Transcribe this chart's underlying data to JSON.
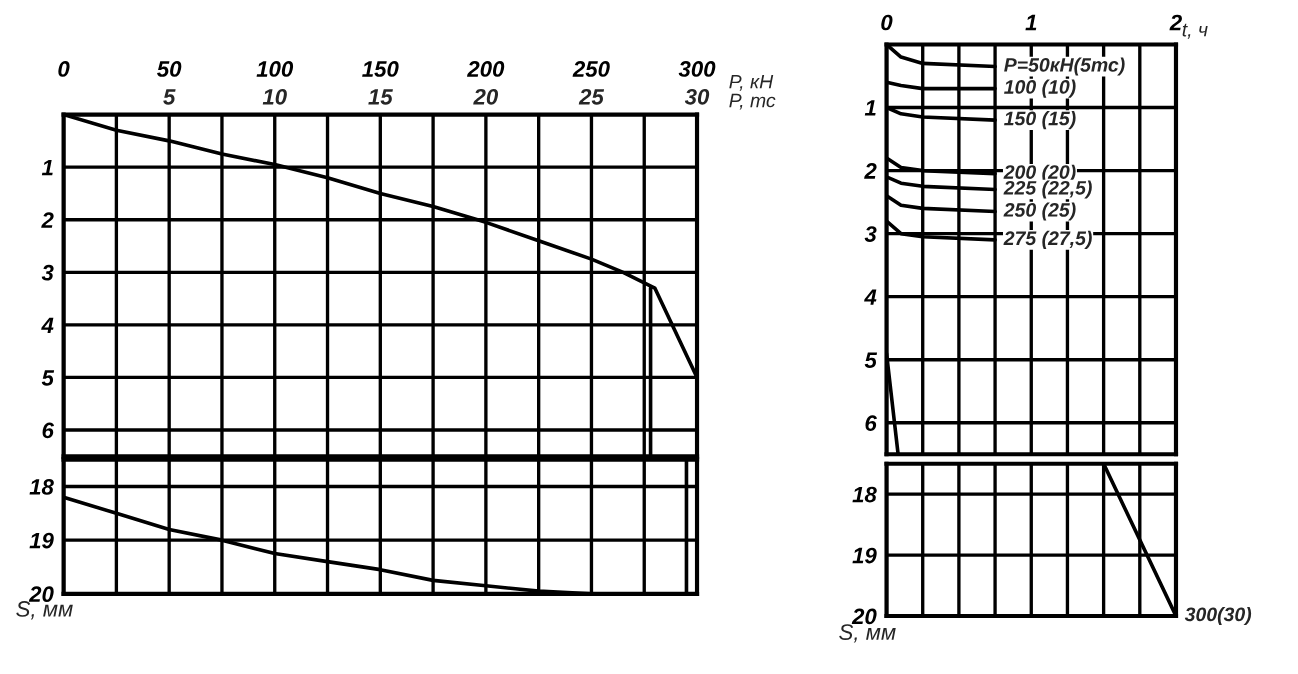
{
  "chart_data": [
    {
      "type": "line",
      "xlabel": "P, кН",
      "x2label": "P, тс",
      "xlim": [
        0,
        300
      ],
      "xticks": [
        0,
        {
          "value": 25,
          "label": null
        },
        50,
        {
          "value": 75,
          "label": null
        },
        100,
        {
          "value": 125,
          "label": null
        },
        150,
        {
          "value": 175,
          "label": null
        },
        200,
        {
          "value": 225,
          "label": null
        },
        250,
        {
          "value": 275,
          "label": null
        },
        300
      ],
      "x2lim": [
        0,
        30
      ],
      "x2ticks": [
        5,
        10,
        15,
        20,
        25,
        30
      ],
      "ylim": [
        6.5,
        0
      ],
      "yticks": [
        1,
        2,
        3,
        4,
        5,
        6
      ],
      "grid": true,
      "series": [
        {
          "color": "#000000",
          "x": [
            0,
            25,
            50,
            75,
            100,
            125,
            150,
            175,
            200,
            225,
            250,
            265,
            280,
            300
          ],
          "values": [
            0,
            0.3,
            0.5,
            0.75,
            0.95,
            1.2,
            1.5,
            1.75,
            2.05,
            2.4,
            2.75,
            3.0,
            3.3,
            5.0
          ]
        },
        {
          "color": "#000000",
          "x": [
            278,
            278
          ],
          "values": [
            3.3,
            6.5
          ]
        }
      ]
    },
    {
      "type": "line",
      "ylabel": "S, мм",
      "xlim": [
        0,
        300
      ],
      "xticks": [
        0,
        25,
        50,
        75,
        100,
        125,
        150,
        175,
        200,
        225,
        250,
        275,
        300
      ],
      "ylim": [
        20,
        17.5
      ],
      "yticks": [
        18,
        19,
        20
      ],
      "grid": true,
      "tick_labels": "y",
      "series": [
        {
          "color": "#000000",
          "x": [
            0,
            25,
            50,
            75,
            100,
            125,
            150,
            175,
            200,
            225,
            250,
            275,
            300
          ],
          "values": [
            18.2,
            18.5,
            18.8,
            19.0,
            19.25,
            19.4,
            19.55,
            19.75,
            19.85,
            19.95,
            20.0,
            20.0,
            20.0
          ]
        },
        {
          "color": "#000000",
          "x": [
            295,
            295
          ],
          "values": [
            17.5,
            20
          ]
        }
      ]
    },
    {
      "type": "line",
      "xlabel": "t, ч",
      "xlim": [
        0,
        2
      ],
      "xticks": [
        0,
        {
          "value": 0.25,
          "label": null
        },
        {
          "value": 0.5,
          "label": null
        },
        {
          "value": 0.75,
          "label": null
        },
        1,
        {
          "value": 1.25,
          "label": null
        },
        {
          "value": 1.5,
          "label": null
        },
        {
          "value": 1.75,
          "label": null
        },
        2
      ],
      "ylim": [
        6.5,
        0
      ],
      "yticks": [
        1,
        2,
        3,
        4,
        5,
        6
      ],
      "grid": true,
      "series": [
        {
          "name": "P=50кН(5тс)",
          "color": "#000000",
          "x": [
            0,
            0.1,
            0.25,
            0.75
          ],
          "values": [
            0,
            0.2,
            0.3,
            0.35
          ]
        },
        {
          "name": "100 (10)",
          "color": "#000000",
          "x": [
            0,
            0.1,
            0.25,
            0.75
          ],
          "values": [
            0.6,
            0.65,
            0.7,
            0.7
          ]
        },
        {
          "name": "150 (15)",
          "color": "#000000",
          "x": [
            0,
            0.1,
            0.25,
            0.75
          ],
          "values": [
            1.0,
            1.1,
            1.15,
            1.2
          ]
        },
        {
          "name": "200 (20)",
          "color": "#000000",
          "x": [
            0,
            0.1,
            0.25,
            0.75
          ],
          "values": [
            1.8,
            1.95,
            2.0,
            2.05
          ]
        },
        {
          "name": "225 (22,5)",
          "color": "#000000",
          "x": [
            0,
            0.1,
            0.25,
            0.75
          ],
          "values": [
            2.1,
            2.2,
            2.25,
            2.3
          ]
        },
        {
          "name": "250 (25)",
          "color": "#000000",
          "x": [
            0,
            0.1,
            0.25,
            0.75
          ],
          "values": [
            2.4,
            2.55,
            2.6,
            2.65
          ]
        },
        {
          "name": "275 (27,5)",
          "color": "#000000",
          "x": [
            0,
            0.1,
            0.25,
            0.75
          ],
          "values": [
            2.8,
            3.0,
            3.05,
            3.1
          ]
        },
        {
          "color": "#000000",
          "x": [
            0,
            0.08
          ],
          "values": [
            4.9,
            6.5
          ]
        }
      ]
    },
    {
      "type": "line",
      "ylabel": "S, мм",
      "xlim": [
        0,
        2
      ],
      "xticks": [
        0,
        0.25,
        0.5,
        0.75,
        1,
        1.25,
        1.5,
        1.75,
        2
      ],
      "ylim": [
        20,
        17.5
      ],
      "yticks": [
        18,
        19,
        20
      ],
      "grid": true,
      "tick_labels": "y",
      "series": [
        {
          "name": "300(30)",
          "color": "#000000",
          "x": [
            1.5,
            2
          ],
          "values": [
            17.5,
            20
          ]
        }
      ]
    }
  ]
}
